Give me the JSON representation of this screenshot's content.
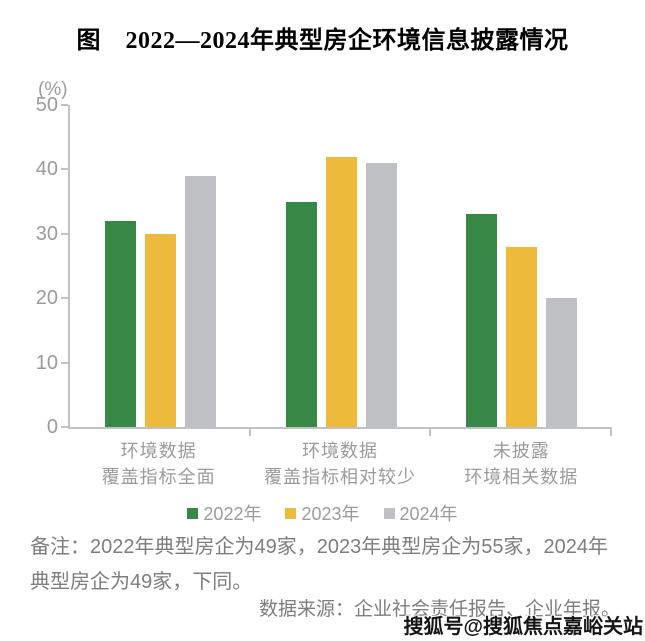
{
  "title": "图　2022—2024年典型房企环境信息披露情况",
  "chart_data": {
    "type": "bar",
    "unit_label": "(%)",
    "categories": [
      [
        "环境数据",
        "覆盖指标全面"
      ],
      [
        "环境数据",
        "覆盖指标相对较少"
      ],
      [
        "未披露",
        "环境相关数据"
      ]
    ],
    "series": [
      {
        "name": "2022年",
        "color": "#378844",
        "values": [
          32,
          35,
          33
        ]
      },
      {
        "name": "2023年",
        "color": "#edba3c",
        "values": [
          30,
          42,
          28
        ]
      },
      {
        "name": "2024年",
        "color": "#bec0c4",
        "values": [
          39,
          41,
          20
        ]
      }
    ],
    "ylim": [
      0,
      50
    ],
    "yticks": [
      0,
      10,
      20,
      30,
      40,
      50
    ],
    "grid": false,
    "legend_position": "bottom",
    "axis_color": "#c2c2c6",
    "label_color": "#9b9b9b"
  },
  "notes": {
    "remark": "备注：2022年典型房企为49家，2023年典型房企为55家，2024年典型房企为49家，下同。",
    "source": "数据来源：企业社会责任报告、企业年报。"
  },
  "watermark": "搜狐号@搜狐焦点嘉峪关站"
}
